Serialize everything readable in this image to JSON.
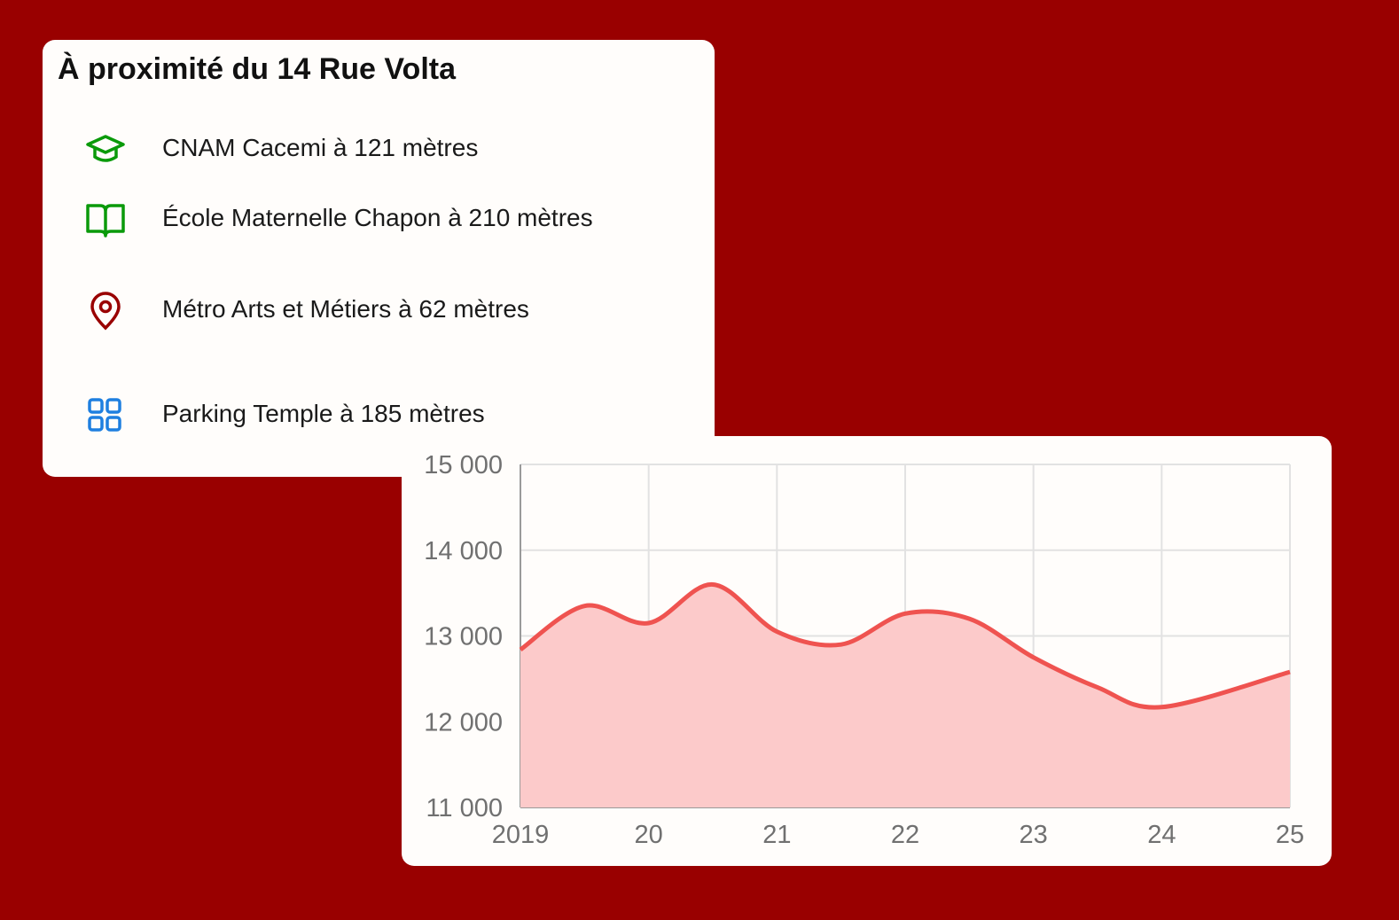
{
  "card": {
    "title": "À proximité du 14 Rue Volta",
    "items": [
      "CNAM Cacemi à 121 mètres",
      "École Maternelle Chapon à 210 mètres",
      "Métro Arts et Métiers à 62 mètres",
      "Parking Temple à 185 mètres"
    ]
  },
  "chart_data": {
    "type": "area",
    "x": [
      2019,
      2019.5,
      2020,
      2020.5,
      2021,
      2021.5,
      2022,
      2022.5,
      2023,
      2023.5,
      2024,
      2025
    ],
    "values": [
      12840,
      13350,
      13150,
      13600,
      13050,
      12900,
      13260,
      13200,
      12750,
      12400,
      12170,
      12580
    ],
    "color": "#ef5350",
    "fill": "#fccaca",
    "xlim": [
      2019,
      2025
    ],
    "xticks": [
      2019,
      {
        "value": 2020,
        "label": "20"
      },
      {
        "value": 2021,
        "label": "21"
      },
      {
        "value": 2022,
        "label": "22"
      },
      {
        "value": 2023,
        "label": "23"
      },
      {
        "value": 2024,
        "label": "24"
      },
      {
        "value": 2025,
        "label": "25"
      }
    ],
    "ylim": [
      11000,
      15000
    ],
    "yticks": [
      {
        "value": 11000,
        "label": "11 000"
      },
      {
        "value": 12000,
        "label": "12 000"
      },
      {
        "value": 13000,
        "label": "13 000"
      },
      {
        "value": 14000,
        "label": "14 000"
      },
      {
        "value": 15000,
        "label": "15 000"
      }
    ],
    "grid": true
  }
}
